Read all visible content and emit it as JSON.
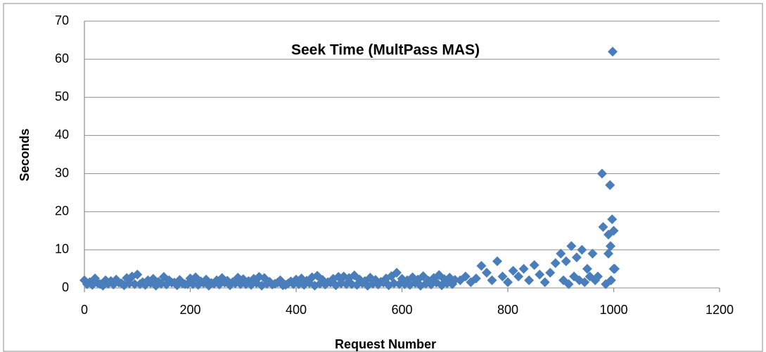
{
  "chart_data": {
    "type": "scatter",
    "title": "Seek Time (MultPass MAS)",
    "x_label": "Request Number",
    "y_label": "Seconds",
    "color": "#4a7ebb",
    "grid": true,
    "xlim": [
      0,
      1200
    ],
    "xticks": [
      0,
      200,
      400,
      600,
      800,
      1000,
      1200
    ],
    "ylim": [
      0,
      70
    ],
    "yticks": [
      0,
      10,
      20,
      30,
      40,
      50,
      60,
      70
    ],
    "x": [
      0,
      10,
      20,
      30,
      40,
      50,
      60,
      70,
      80,
      90,
      100,
      110,
      120,
      130,
      140,
      150,
      160,
      170,
      180,
      190,
      200,
      210,
      220,
      230,
      240,
      250,
      260,
      270,
      280,
      290,
      300,
      310,
      320,
      330,
      340,
      350,
      360,
      370,
      380,
      390,
      400,
      410,
      420,
      430,
      440,
      450,
      460,
      470,
      480,
      490,
      500,
      510,
      520,
      530,
      540,
      550,
      560,
      570,
      580,
      590,
      600,
      610,
      620,
      630,
      640,
      650,
      660,
      670,
      680,
      690,
      700,
      5,
      15,
      25,
      35,
      45,
      55,
      65,
      75,
      85,
      95,
      105,
      115,
      125,
      135,
      145,
      155,
      165,
      175,
      185,
      195,
      205,
      215,
      225,
      235,
      245,
      255,
      265,
      275,
      285,
      295,
      305,
      315,
      325,
      335,
      345,
      355,
      365,
      375,
      385,
      395,
      405,
      415,
      425,
      435,
      445,
      455,
      465,
      475,
      485,
      495,
      505,
      515,
      525,
      535,
      545,
      555,
      565,
      575,
      585,
      595,
      605,
      615,
      625,
      635,
      645,
      655,
      665,
      675,
      685,
      695,
      710,
      720,
      730,
      740,
      750,
      760,
      770,
      780,
      790,
      800,
      810,
      820,
      830,
      840,
      850,
      860,
      870,
      880,
      890,
      900,
      910,
      920,
      930,
      940,
      950,
      960,
      970,
      980,
      990,
      1000,
      905,
      915,
      925,
      935,
      945,
      955,
      965,
      985,
      995,
      998,
      993,
      997,
      1000,
      994,
      990,
      1002,
      978
    ],
    "y": [
      2,
      1.5,
      2.5,
      1,
      2,
      1.8,
      2.2,
      1.2,
      2.6,
      3,
      3.5,
      1.5,
      2,
      2.4,
      1.6,
      2.9,
      2,
      1.4,
      2.1,
      1,
      2.5,
      2.8,
      1.7,
      2.2,
      1.3,
      2,
      2.6,
      1.9,
      1.5,
      2.7,
      2.3,
      1.8,
      2.4,
      2.9,
      2.6,
      1.6,
      1.1,
      2,
      0.8,
      1.7,
      2.2,
      2.5,
      1.9,
      2.8,
      3.2,
      2.1,
      1.5,
      2.4,
      2.9,
      3,
      2.6,
      3.3,
      2.2,
      1.8,
      2.7,
      2.1,
      1.6,
      2.5,
      3.1,
      4,
      2.4,
      2,
      2.8,
      2.2,
      3.1,
      1.9,
      2.6,
      3.4,
      2.3,
      2.7,
      2.1,
      1,
      0.8,
      1.3,
      0.6,
      1.1,
      0.9,
      1.4,
      0.7,
      1.2,
      1,
      1,
      0.8,
      1.3,
      0.6,
      1.1,
      0.9,
      1.4,
      0.7,
      1.2,
      1,
      1,
      0.8,
      1.3,
      0.6,
      1.1,
      0.9,
      1.4,
      0.7,
      1.2,
      1,
      1,
      0.8,
      1.3,
      0.6,
      1.1,
      0.9,
      1.4,
      0.7,
      1.2,
      1,
      1,
      0.8,
      1.3,
      0.6,
      1.1,
      0.9,
      1.4,
      0.7,
      1.2,
      1,
      1,
      0.8,
      1.3,
      0.6,
      1.1,
      0.9,
      1.4,
      0.7,
      1.2,
      1,
      1,
      0.8,
      1.3,
      0.6,
      1.1,
      0.9,
      1.4,
      0.7,
      1.2,
      1,
      2,
      3,
      1.5,
      2.5,
      5.8,
      4,
      2,
      7,
      3,
      1.5,
      4.5,
      3,
      5,
      2,
      6,
      3.5,
      1.5,
      4,
      6.5,
      9,
      7,
      11,
      8,
      10,
      5,
      9,
      3,
      16,
      14,
      5,
      2,
      1,
      3,
      2,
      1.5,
      3,
      2,
      1,
      2,
      62,
      27,
      18,
      15,
      11,
      9,
      5,
      30
    ]
  }
}
